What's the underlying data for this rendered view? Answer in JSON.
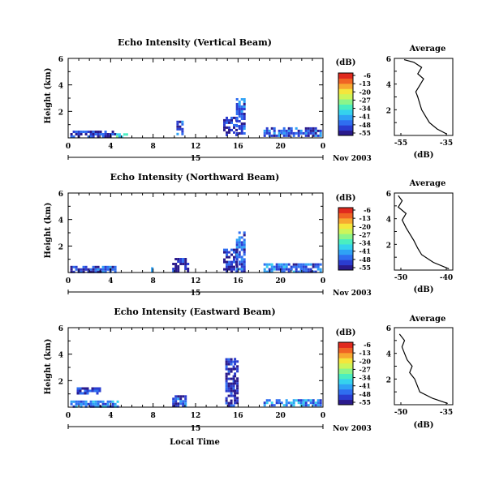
{
  "panels": [
    {
      "title": "Echo Intensity (Vertical Beam)",
      "ylabel": "Height (km)",
      "colorbar_unit": "(dB)",
      "date_label": "Nov 2003",
      "avg_title": "Average",
      "avg_xlabel": "(dB)",
      "avg_xticks": [
        "-55",
        "-35"
      ],
      "avg_yticks": [
        "2",
        "4",
        "6"
      ]
    },
    {
      "title": "Echo Intensity (Northward Beam)",
      "ylabel": "Height (km)",
      "colorbar_unit": "(dB)",
      "date_label": "Nov 2003",
      "avg_title": "Average",
      "avg_xlabel": "(dB)",
      "avg_xticks": [
        "-50",
        "-40"
      ],
      "avg_yticks": [
        "2",
        "4",
        "6"
      ]
    },
    {
      "title": "Echo Intensity (Eastward Beam)",
      "ylabel": "Height (km)",
      "colorbar_unit": "(dB)",
      "date_label": "Nov 2003",
      "avg_title": "Average",
      "avg_xlabel": "(dB)",
      "avg_xticks": [
        "-50",
        "-35"
      ],
      "avg_yticks": [
        "2",
        "4",
        "6"
      ]
    }
  ],
  "xlabel": "Local Time",
  "day_label": "15",
  "colors": {
    "scale": [
      "#2a1a8c",
      "#2a3cd0",
      "#2f6ef0",
      "#2fa2f5",
      "#35d2ee",
      "#4aeec0",
      "#8cf58a",
      "#cdf55a",
      "#f5e63c",
      "#f7a830",
      "#f06424",
      "#e02a1e"
    ]
  },
  "chart_data": [
    {
      "type": "heatmap",
      "beam": "Vertical",
      "x_range": [
        0,
        24
      ],
      "y_range": [
        0,
        6
      ],
      "x_ticks": [
        "0",
        "4",
        "8",
        "12",
        "16",
        "20",
        "0"
      ],
      "y_ticks": [
        "2",
        "4",
        "6"
      ],
      "colorbar_ticks": [
        "-6",
        "-13",
        "-20",
        "-27",
        "-34",
        "-41",
        "-48",
        "-55"
      ],
      "echo_regions": [
        {
          "t0": 0.2,
          "t1": 4.5,
          "h0": 0.1,
          "h1": 0.55,
          "db": -50
        },
        {
          "t0": 4.5,
          "t1": 5.6,
          "h0": 0.1,
          "h1": 0.35,
          "db": -35
        },
        {
          "t0": 10.2,
          "t1": 10.8,
          "h0": 0.3,
          "h1": 1.3,
          "db": -48
        },
        {
          "t0": 14.6,
          "t1": 15.8,
          "h0": 0.3,
          "h1": 1.6,
          "db": -50
        },
        {
          "t0": 15.8,
          "t1": 16.6,
          "h0": 0.3,
          "h1": 3.0,
          "db": -46
        },
        {
          "t0": 18.4,
          "t1": 23.7,
          "h0": 0.1,
          "h1": 0.8,
          "db": -47
        }
      ],
      "avg_profile": {
        "x_range": [
          -60,
          -30
        ],
        "points": [
          [
            -33,
            0.1
          ],
          [
            -38,
            0.5
          ],
          [
            -42,
            1.0
          ],
          [
            -44,
            1.5
          ],
          [
            -46,
            2.0
          ],
          [
            -47,
            2.5
          ],
          [
            -48,
            3.0
          ],
          [
            -49,
            3.4
          ],
          [
            -47,
            3.9
          ],
          [
            -45,
            4.4
          ],
          [
            -48,
            4.8
          ],
          [
            -46,
            5.3
          ],
          [
            -50,
            5.7
          ],
          [
            -55,
            5.9
          ]
        ]
      }
    },
    {
      "type": "heatmap",
      "beam": "Northward",
      "x_range": [
        0,
        24
      ],
      "y_range": [
        0,
        6
      ],
      "x_ticks": [
        "0",
        "4",
        "8",
        "12",
        "16",
        "20",
        "0"
      ],
      "y_ticks": [
        "2",
        "4",
        "6"
      ],
      "colorbar_ticks": [
        "-6",
        "-13",
        "-20",
        "-27",
        "-34",
        "-41",
        "-48",
        "-55"
      ],
      "echo_regions": [
        {
          "t0": 0.2,
          "t1": 4.5,
          "h0": 0.1,
          "h1": 0.5,
          "db": -48
        },
        {
          "t0": 7.8,
          "t1": 8.0,
          "h0": 0.2,
          "h1": 0.4,
          "db": -40
        },
        {
          "t0": 9.8,
          "t1": 11.2,
          "h0": 0.1,
          "h1": 1.1,
          "db": -52
        },
        {
          "t0": 14.6,
          "t1": 15.8,
          "h0": 0.1,
          "h1": 1.8,
          "db": -50
        },
        {
          "t0": 15.8,
          "t1": 16.6,
          "h0": 0.1,
          "h1": 3.1,
          "db": -46
        },
        {
          "t0": 18.4,
          "t1": 23.7,
          "h0": 0.1,
          "h1": 0.7,
          "db": -45
        }
      ],
      "avg_profile": {
        "x_range": [
          -50,
          -35
        ],
        "points": [
          [
            -36,
            0.1
          ],
          [
            -40,
            0.6
          ],
          [
            -43,
            1.2
          ],
          [
            -44,
            1.7
          ],
          [
            -45,
            2.3
          ],
          [
            -46,
            2.8
          ],
          [
            -47,
            3.3
          ],
          [
            -48,
            3.9
          ],
          [
            -47,
            4.4
          ],
          [
            -49,
            4.9
          ],
          [
            -48,
            5.4
          ],
          [
            -49,
            5.8
          ]
        ]
      }
    },
    {
      "type": "heatmap",
      "beam": "Eastward",
      "x_range": [
        0,
        24
      ],
      "y_range": [
        0,
        6
      ],
      "x_ticks": [
        "0",
        "4",
        "8",
        "12",
        "16",
        "20",
        "0"
      ],
      "y_ticks": [
        "2",
        "4",
        "6"
      ],
      "colorbar_ticks": [
        "-6",
        "-13",
        "-20",
        "-27",
        "-34",
        "-41",
        "-48",
        "-55"
      ],
      "echo_regions": [
        {
          "t0": 0.2,
          "t1": 4.6,
          "h0": 0.1,
          "h1": 0.5,
          "db": -44
        },
        {
          "t0": 0.8,
          "t1": 3.0,
          "h0": 1.1,
          "h1": 1.5,
          "db": -48
        },
        {
          "t0": 9.8,
          "t1": 11.0,
          "h0": 0.1,
          "h1": 0.9,
          "db": -48
        },
        {
          "t0": 14.8,
          "t1": 15.6,
          "h0": 0.1,
          "h1": 3.7,
          "db": -50
        },
        {
          "t0": 15.6,
          "t1": 16.0,
          "h0": 0.1,
          "h1": 3.9,
          "db": -53
        },
        {
          "t0": 18.4,
          "t1": 23.7,
          "h0": 0.1,
          "h1": 0.6,
          "db": -42
        }
      ],
      "avg_profile": {
        "x_range": [
          -55,
          -32
        ],
        "points": [
          [
            -34,
            0.1
          ],
          [
            -40,
            0.5
          ],
          [
            -45,
            1.0
          ],
          [
            -46,
            1.5
          ],
          [
            -47,
            2.0
          ],
          [
            -49,
            2.5
          ],
          [
            -48,
            3.0
          ],
          [
            -50,
            3.5
          ],
          [
            -51,
            4.0
          ],
          [
            -52,
            4.5
          ],
          [
            -51,
            5.0
          ],
          [
            -53,
            5.5
          ]
        ]
      }
    }
  ]
}
